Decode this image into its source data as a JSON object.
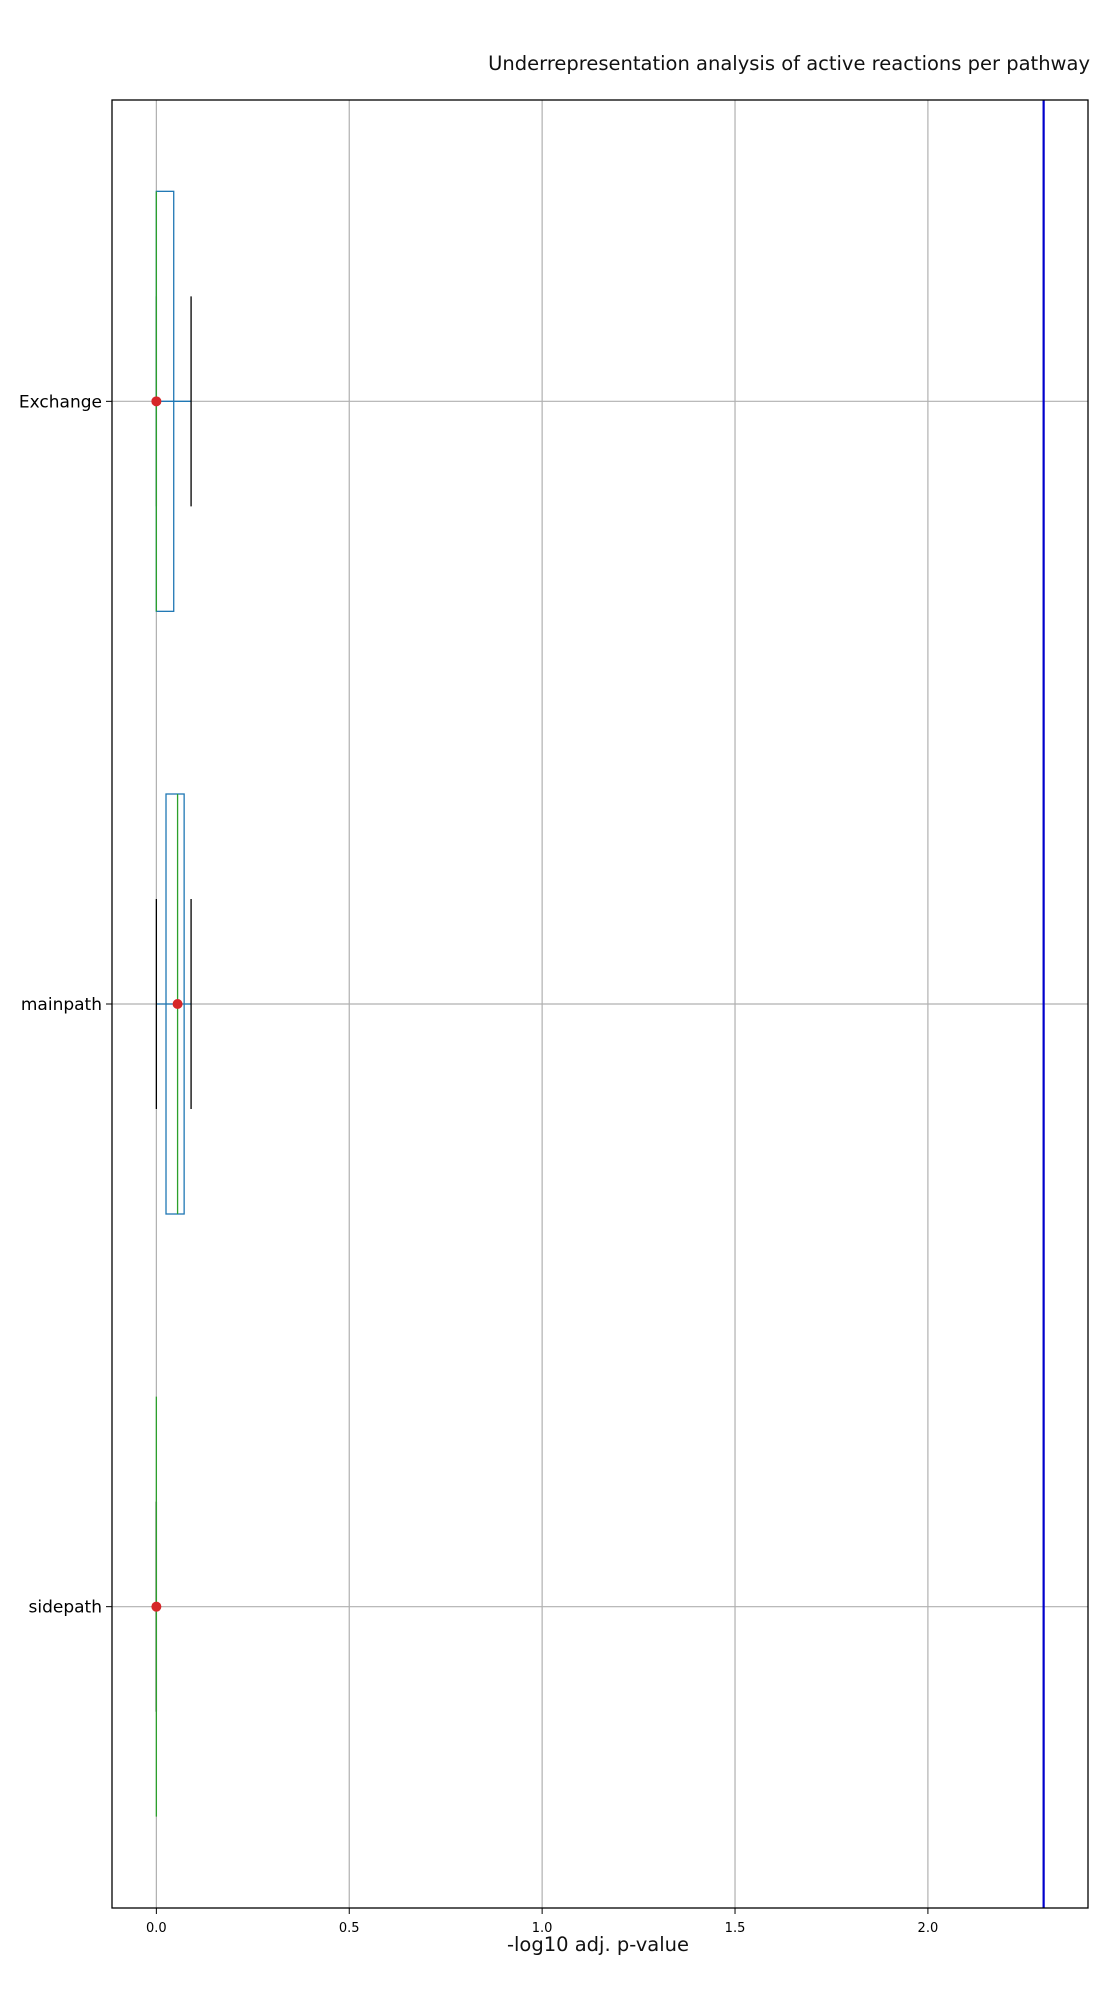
{
  "chart_data": {
    "type": "boxplot",
    "orientation": "horizontal",
    "title": "Underrepresentation analysis of active reactions per pathway",
    "xlabel": "-log10 adj. p-value",
    "ylabel": "",
    "xlim": [
      -0.115,
      2.415
    ],
    "x_ticks": [
      0.0,
      0.5,
      1.0,
      1.5,
      2.0
    ],
    "x_tick_labels": [
      "0.0",
      "0.5",
      "1.0",
      "1.5",
      "2.0"
    ],
    "categories": [
      "Exchange",
      "mainpath",
      "sidepath"
    ],
    "grid": true,
    "threshold_line": {
      "x": 2.3,
      "color": "#0000cc"
    },
    "boxes": [
      {
        "category": "Exchange",
        "whisker_low": 0.0,
        "q1": 0.0,
        "median": 0.0,
        "q3": 0.045,
        "whisker_high": 0.09,
        "mean": 0.0
      },
      {
        "category": "mainpath",
        "whisker_low": 0.0,
        "q1": 0.025,
        "median": 0.055,
        "q3": 0.072,
        "whisker_high": 0.09,
        "mean": 0.055
      },
      {
        "category": "sidepath",
        "whisker_low": 0.0,
        "q1": 0.0,
        "median": 0.0,
        "q3": 0.0,
        "whisker_high": 0.0,
        "mean": 0.0
      }
    ],
    "colors": {
      "box": "#1f77b4",
      "median": "#2ca02c",
      "whisker": "#000000",
      "mean_marker": "#d62728",
      "grid": "#b0b0b0"
    }
  }
}
